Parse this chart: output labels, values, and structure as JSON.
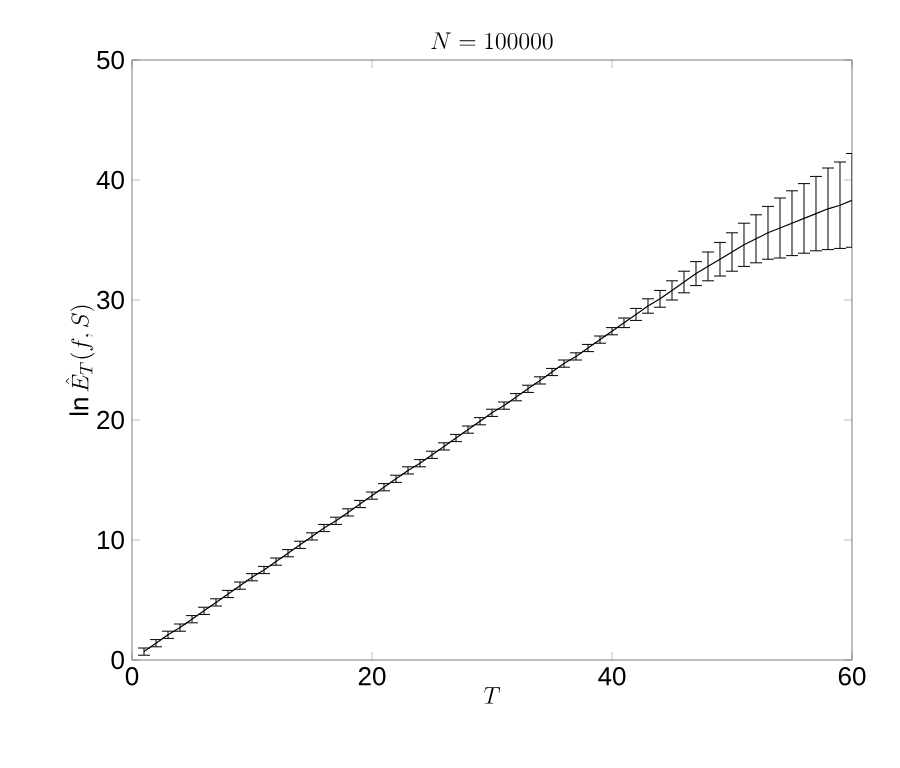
{
  "chart_data": {
    "type": "line",
    "title": "N = 100000",
    "xlabel": "T",
    "ylabel": "\\ln \\hat{E}_T(f,S)",
    "x": [
      1,
      2,
      3,
      4,
      5,
      6,
      7,
      8,
      9,
      10,
      11,
      12,
      13,
      14,
      15,
      16,
      17,
      18,
      19,
      20,
      21,
      22,
      23,
      24,
      25,
      26,
      27,
      28,
      29,
      30,
      31,
      32,
      33,
      34,
      35,
      36,
      37,
      38,
      39,
      40,
      41,
      42,
      43,
      44,
      45,
      46,
      47,
      48,
      49,
      50,
      51,
      52,
      53,
      54,
      55,
      56,
      57,
      58,
      59,
      60
    ],
    "series": [
      {
        "color": "#000000",
        "values": [
          0.7,
          1.4,
          2.1,
          2.7,
          3.4,
          4.1,
          4.8,
          5.5,
          6.2,
          6.9,
          7.5,
          8.2,
          8.9,
          9.6,
          10.3,
          11.0,
          11.6,
          12.3,
          13.0,
          13.7,
          14.4,
          15.1,
          15.8,
          16.4,
          17.1,
          17.8,
          18.5,
          19.2,
          19.9,
          20.6,
          21.2,
          21.9,
          22.6,
          23.3,
          24.0,
          24.7,
          25.3,
          26.0,
          26.7,
          27.4,
          28.1,
          28.8,
          29.5,
          30.1,
          30.8,
          31.5,
          32.2,
          32.8,
          33.4,
          34.0,
          34.6,
          35.1,
          35.6,
          36.0,
          36.4,
          36.8,
          37.2,
          37.6,
          37.9,
          38.3
        ],
        "errors": [
          0.3,
          0.3,
          0.3,
          0.3,
          0.3,
          0.3,
          0.3,
          0.3,
          0.3,
          0.3,
          0.3,
          0.3,
          0.3,
          0.3,
          0.3,
          0.3,
          0.3,
          0.3,
          0.3,
          0.3,
          0.3,
          0.3,
          0.3,
          0.3,
          0.3,
          0.3,
          0.3,
          0.3,
          0.3,
          0.3,
          0.3,
          0.3,
          0.3,
          0.3,
          0.3,
          0.3,
          0.3,
          0.3,
          0.3,
          0.3,
          0.4,
          0.5,
          0.6,
          0.7,
          0.8,
          0.9,
          1.0,
          1.2,
          1.4,
          1.6,
          1.8,
          2.0,
          2.2,
          2.5,
          2.7,
          2.9,
          3.1,
          3.4,
          3.6,
          3.9
        ]
      }
    ],
    "xlim": [
      0,
      60
    ],
    "xticks": [
      0,
      20,
      40,
      60
    ],
    "ylim": [
      0,
      50
    ],
    "yticks": [
      0,
      10,
      20,
      30,
      40,
      50
    ],
    "grid": false,
    "marker": "none",
    "line_style": "solid"
  }
}
